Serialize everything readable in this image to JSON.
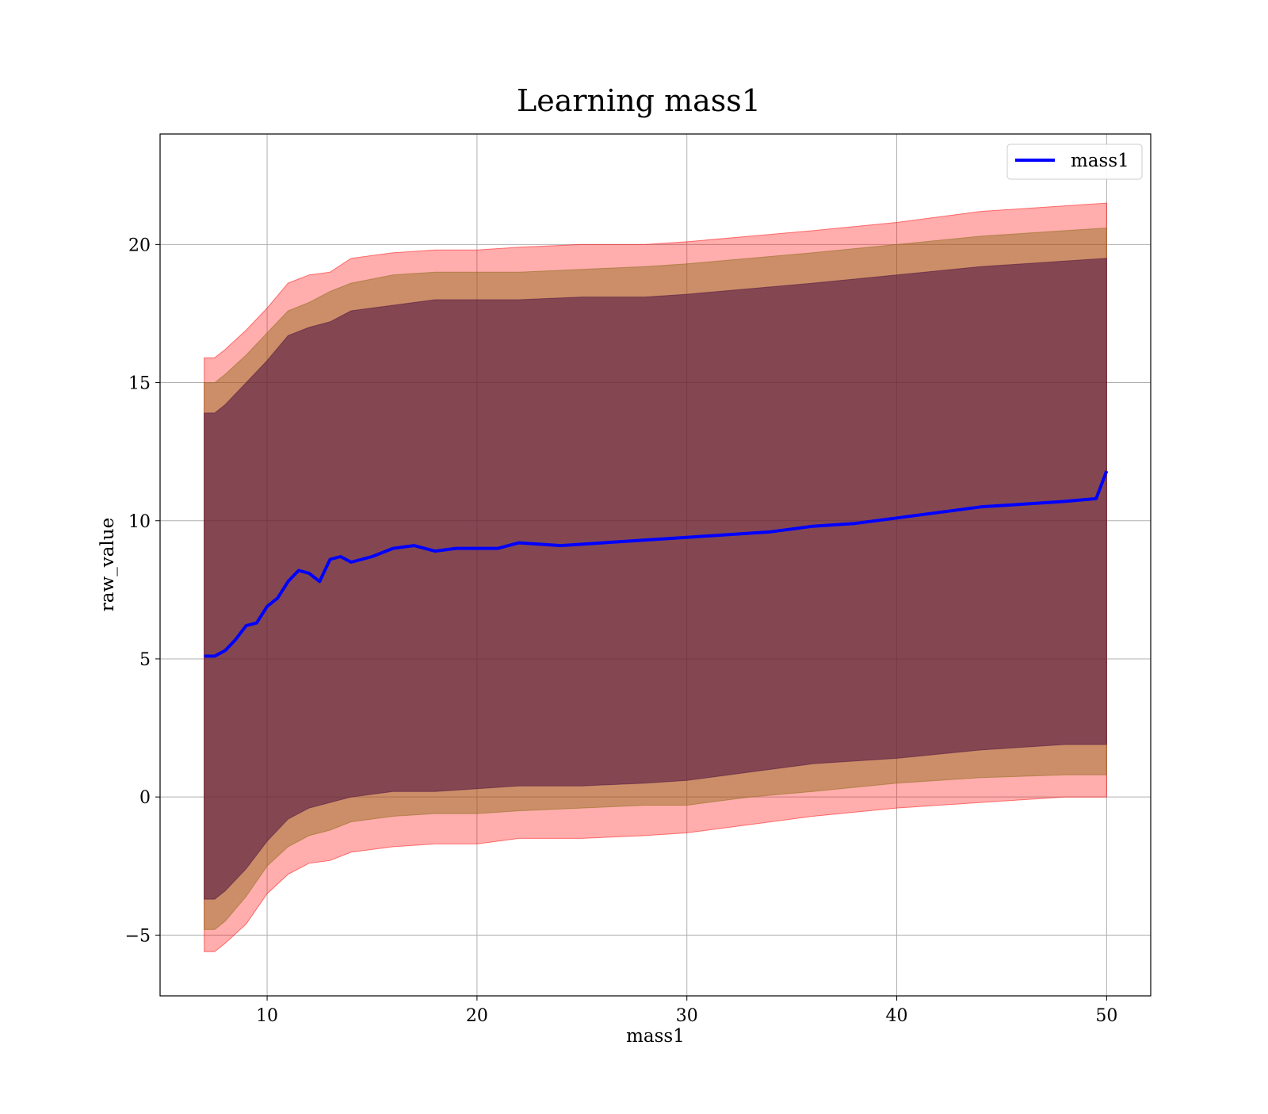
{
  "chart_data": {
    "type": "area",
    "title": "Learning mass1",
    "xlabel": "mass1",
    "ylabel": "raw_value",
    "xlim": [
      4.9,
      52.1
    ],
    "ylim": [
      -7.2,
      24.0
    ],
    "xticks": [
      10,
      20,
      30,
      40,
      50
    ],
    "yticks": [
      -5,
      0,
      5,
      10,
      15,
      20
    ],
    "ytick_labels": [
      "−5",
      "0",
      "5",
      "10",
      "15",
      "20"
    ],
    "grid": true,
    "legend_position": "upper right",
    "colors": {
      "line": "#0000ff",
      "band_outer": "#ff0000",
      "band_middle": "#8b6914",
      "band_inner": "#4b0d40"
    },
    "series": [
      {
        "name": "mass1",
        "x": [
          7.0,
          7.5,
          8.0,
          8.5,
          9.0,
          9.5,
          10.0,
          10.5,
          11.0,
          11.5,
          12.0,
          12.5,
          13.0,
          13.5,
          14.0,
          15.0,
          16.0,
          17.0,
          18.0,
          19.0,
          20.0,
          21.0,
          22.0,
          24.0,
          26.0,
          28.0,
          30.0,
          32.0,
          34.0,
          36.0,
          38.0,
          40.0,
          42.0,
          44.0,
          46.0,
          48.0,
          49.5,
          50.0
        ],
        "y": [
          5.1,
          5.1,
          5.3,
          5.7,
          6.2,
          6.3,
          6.9,
          7.2,
          7.8,
          8.2,
          8.1,
          7.8,
          8.6,
          8.7,
          8.5,
          8.7,
          9.0,
          9.1,
          8.9,
          9.0,
          9.0,
          9.0,
          9.2,
          9.1,
          9.2,
          9.3,
          9.4,
          9.5,
          9.6,
          9.8,
          9.9,
          10.1,
          10.3,
          10.5,
          10.6,
          10.7,
          10.8,
          11.8
        ]
      }
    ],
    "bands": [
      {
        "level": "outer",
        "x": [
          7.0,
          7.5,
          8.0,
          9.0,
          10.0,
          11.0,
          12.0,
          13.0,
          14.0,
          16.0,
          18.0,
          20.0,
          22.0,
          25.0,
          28.0,
          30.0,
          33.0,
          36.0,
          40.0,
          44.0,
          48.0,
          50.0
        ],
        "upper": [
          15.9,
          15.9,
          16.2,
          16.9,
          17.7,
          18.6,
          18.9,
          19.0,
          19.5,
          19.7,
          19.8,
          19.8,
          19.9,
          20.0,
          20.0,
          20.1,
          20.3,
          20.5,
          20.8,
          21.2,
          21.4,
          21.5
        ],
        "lower": [
          -5.6,
          -5.6,
          -5.3,
          -4.6,
          -3.5,
          -2.8,
          -2.4,
          -2.3,
          -2.0,
          -1.8,
          -1.7,
          -1.7,
          -1.5,
          -1.5,
          -1.4,
          -1.3,
          -1.0,
          -0.7,
          -0.4,
          -0.2,
          -0.0,
          0.0
        ]
      },
      {
        "level": "middle",
        "x": [
          7.0,
          7.5,
          8.0,
          9.0,
          10.0,
          11.0,
          12.0,
          13.0,
          14.0,
          16.0,
          18.0,
          20.0,
          22.0,
          25.0,
          28.0,
          30.0,
          33.0,
          36.0,
          40.0,
          44.0,
          48.0,
          50.0
        ],
        "upper": [
          15.0,
          15.0,
          15.3,
          16.0,
          16.8,
          17.6,
          17.9,
          18.3,
          18.6,
          18.9,
          19.0,
          19.0,
          19.0,
          19.1,
          19.2,
          19.3,
          19.5,
          19.7,
          20.0,
          20.3,
          20.5,
          20.6
        ],
        "lower": [
          -4.8,
          -4.8,
          -4.5,
          -3.6,
          -2.5,
          -1.8,
          -1.4,
          -1.2,
          -0.9,
          -0.7,
          -0.6,
          -0.6,
          -0.5,
          -0.4,
          -0.3,
          -0.3,
          0.0,
          0.2,
          0.5,
          0.7,
          0.8,
          0.8
        ]
      },
      {
        "level": "inner",
        "x": [
          7.0,
          7.5,
          8.0,
          9.0,
          10.0,
          11.0,
          12.0,
          13.0,
          14.0,
          16.0,
          18.0,
          20.0,
          22.0,
          25.0,
          28.0,
          30.0,
          33.0,
          36.0,
          40.0,
          44.0,
          48.0,
          50.0
        ],
        "upper": [
          13.9,
          13.9,
          14.2,
          15.0,
          15.8,
          16.7,
          17.0,
          17.2,
          17.6,
          17.8,
          18.0,
          18.0,
          18.0,
          18.1,
          18.1,
          18.2,
          18.4,
          18.6,
          18.9,
          19.2,
          19.4,
          19.5
        ],
        "lower": [
          -3.7,
          -3.7,
          -3.4,
          -2.6,
          -1.6,
          -0.8,
          -0.4,
          -0.2,
          0.0,
          0.2,
          0.2,
          0.3,
          0.4,
          0.4,
          0.5,
          0.6,
          0.9,
          1.2,
          1.4,
          1.7,
          1.9,
          1.9
        ]
      }
    ]
  }
}
